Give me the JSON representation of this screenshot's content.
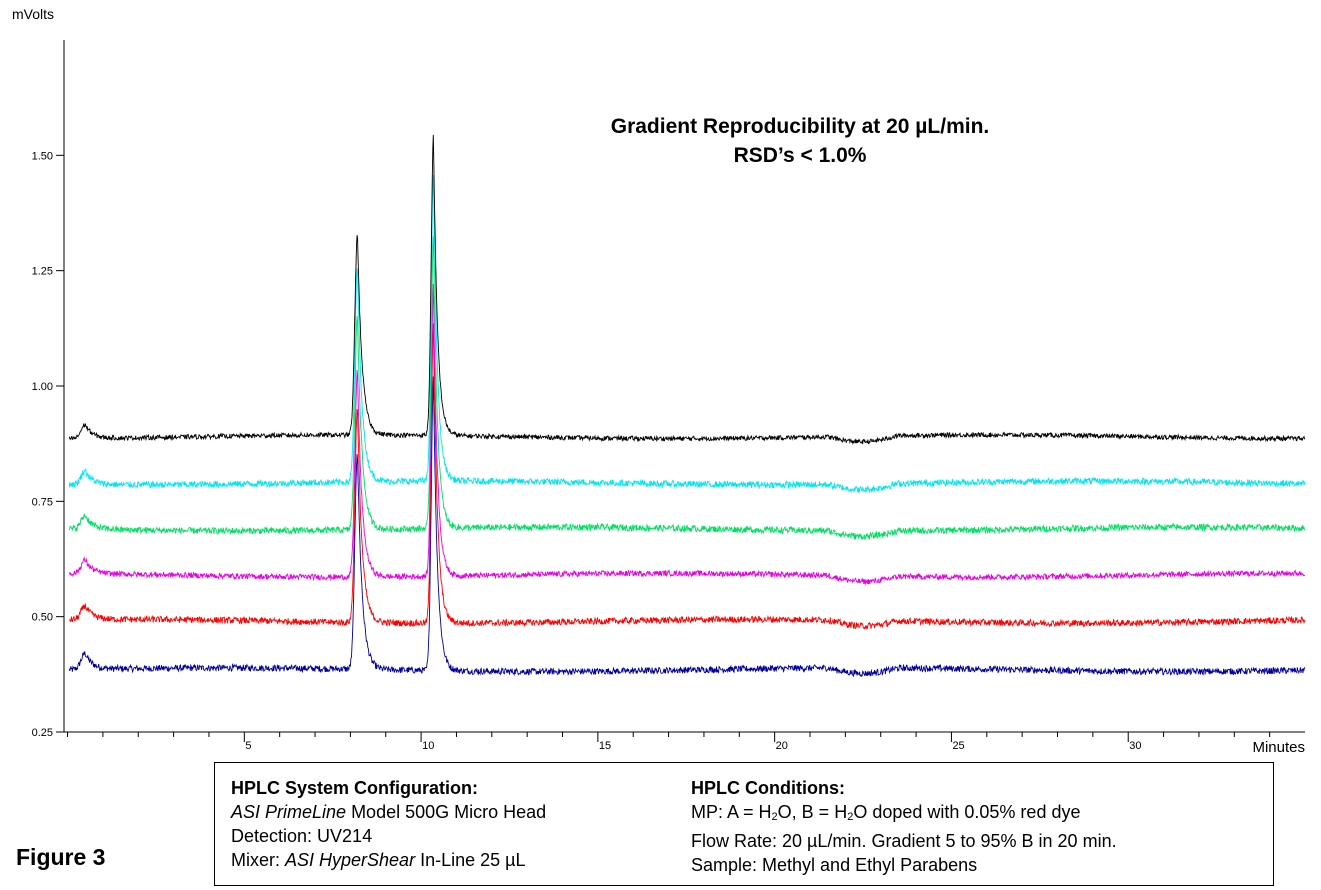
{
  "chart_data": {
    "type": "line",
    "title": "Gradient Reproducibility at 20 µL/min.",
    "subtitle": "RSD’s < 1.0%",
    "ylabel": "mVolts",
    "xlabel": "Minutes",
    "xlim": [
      -0.1,
      35
    ],
    "ylim": [
      0.25,
      1.75
    ],
    "xticks": [
      5,
      10,
      15,
      20,
      25,
      30
    ],
    "yticks": [
      0.25,
      0.5,
      0.75,
      1.0,
      1.25,
      1.5
    ],
    "ytick_labels": [
      "0.25",
      "0.50",
      "0.75",
      "1.00",
      "1.25",
      "1.50"
    ],
    "grid": false,
    "peaks": [
      {
        "x": 0.5,
        "width": 0.25
      },
      {
        "x": 8.2,
        "width": 0.16
      },
      {
        "x": 10.35,
        "width": 0.14
      }
    ],
    "series": [
      {
        "color": "#000000",
        "baseline": 0.89,
        "peak_heights": [
          0.92,
          1.33,
          1.54
        ],
        "noise": 0.005
      },
      {
        "color": "#00e5f0",
        "baseline": 0.79,
        "peak_heights": [
          0.82,
          1.26,
          1.46
        ],
        "noise": 0.007
      },
      {
        "color": "#00e060",
        "baseline": 0.69,
        "peak_heights": [
          0.72,
          1.16,
          1.33
        ],
        "noise": 0.007
      },
      {
        "color": "#e600e6",
        "baseline": 0.59,
        "peak_heights": [
          0.62,
          1.04,
          1.22
        ],
        "noise": 0.006
      },
      {
        "color": "#ff0000",
        "baseline": 0.49,
        "peak_heights": [
          0.52,
          0.96,
          1.14
        ],
        "noise": 0.007
      },
      {
        "color": "#0000a0",
        "baseline": 0.385,
        "peak_heights": [
          0.42,
          0.86,
          1.02
        ],
        "noise": 0.007
      }
    ]
  },
  "config": {
    "heading": "HPLC System Configuration:",
    "pump_brand": "ASI PrimeLine",
    "pump_rest": " Model 500G Micro Head",
    "detection": "Detection: UV214",
    "mixer_prefix": "Mixer: ",
    "mixer_brand": "ASI HyperShear",
    "mixer_rest": " In-Line 25 µL"
  },
  "conditions": {
    "heading": "HPLC Conditions:",
    "mp_a": "MP: A = H",
    "mp_sub1": "2",
    "mp_mid": "O, B = H",
    "mp_sub2": "2",
    "mp_end": "O doped with 0.05% red dye",
    "flow": "Flow Rate: 20 µL/min. Gradient 5 to 95% B in 20 min.",
    "sample": "Sample: Methyl and Ethyl Parabens"
  },
  "figure_label": "Figure 3"
}
